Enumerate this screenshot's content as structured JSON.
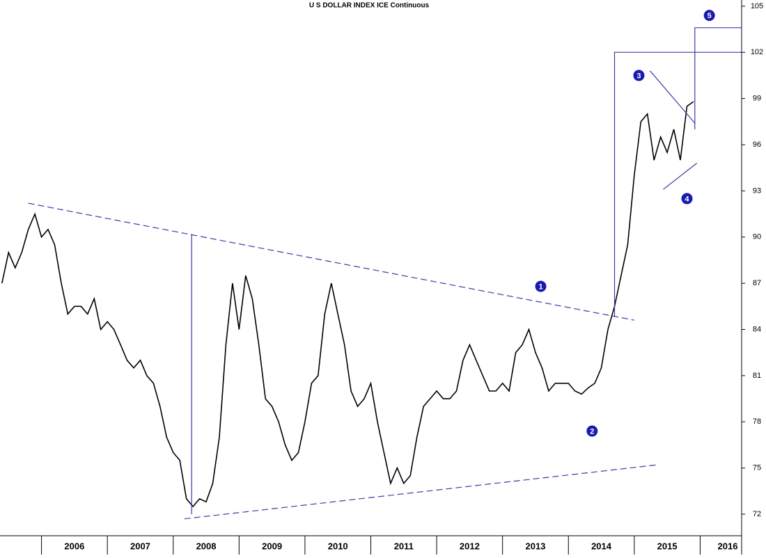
{
  "chart_data": {
    "type": "line",
    "title": "U S DOLLAR INDEX ICE Continuous",
    "x": [
      2005.4,
      2005.5,
      2005.6,
      2005.7,
      2005.8,
      2005.9,
      2006.0,
      2006.1,
      2006.2,
      2006.3,
      2006.4,
      2006.5,
      2006.6,
      2006.7,
      2006.8,
      2006.9,
      2007.0,
      2007.1,
      2007.2,
      2007.3,
      2007.4,
      2007.5,
      2007.6,
      2007.7,
      2007.8,
      2007.9,
      2008.0,
      2008.1,
      2008.2,
      2008.3,
      2008.4,
      2008.5,
      2008.6,
      2008.7,
      2008.8,
      2008.9,
      2009.0,
      2009.1,
      2009.2,
      2009.3,
      2009.4,
      2009.5,
      2009.6,
      2009.7,
      2009.8,
      2009.9,
      2010.0,
      2010.1,
      2010.2,
      2010.3,
      2010.4,
      2010.5,
      2010.6,
      2010.7,
      2010.8,
      2010.9,
      2011.0,
      2011.1,
      2011.2,
      2011.3,
      2011.4,
      2011.5,
      2011.6,
      2011.7,
      2011.8,
      2011.9,
      2012.0,
      2012.1,
      2012.2,
      2012.3,
      2012.4,
      2012.5,
      2012.6,
      2012.7,
      2012.8,
      2012.9,
      2013.0,
      2013.1,
      2013.2,
      2013.3,
      2013.4,
      2013.5,
      2013.6,
      2013.7,
      2013.8,
      2013.9,
      2014.0,
      2014.1,
      2014.2,
      2014.3,
      2014.4,
      2014.5,
      2014.6,
      2014.7,
      2014.8,
      2014.9,
      2015.0,
      2015.1,
      2015.2,
      2015.3,
      2015.4,
      2015.5,
      2015.6,
      2015.7,
      2015.8,
      2015.9
    ],
    "series": [
      {
        "color": "#000000",
        "values": [
          87,
          89,
          88,
          89,
          90.5,
          91.5,
          90,
          90.5,
          89.5,
          87,
          85,
          85.5,
          85.5,
          85,
          86,
          84,
          84.5,
          84,
          83,
          82,
          81.5,
          82,
          81,
          80.5,
          79,
          77,
          76,
          75.5,
          73,
          72.5,
          73,
          72.8,
          74,
          77,
          83,
          87,
          84,
          87.5,
          86,
          83,
          79.5,
          79,
          78,
          76.5,
          75.5,
          76,
          78,
          80.5,
          81,
          85,
          87,
          85,
          83,
          80,
          79,
          79.5,
          80.5,
          78,
          76,
          74,
          75,
          74,
          74.5,
          77,
          79,
          79.5,
          80,
          79.5,
          79.5,
          80,
          82,
          83,
          82,
          81,
          80,
          80,
          80.5,
          80,
          82.5,
          83,
          84,
          82.5,
          81.5,
          80,
          80.5,
          80.5,
          80.5,
          80,
          79.8,
          80.2,
          80.5,
          81.5,
          84,
          85.5,
          87.5,
          89.5,
          94,
          97.5,
          98,
          95,
          96.5,
          95.5,
          97,
          95,
          98.5,
          98.8
        ]
      }
    ],
    "xlim": [
      2005.37,
      2016.63
    ],
    "ylim": [
      70.6,
      105.4
    ],
    "xticks": [
      2006,
      2007,
      2008,
      2009,
      2010,
      2011,
      2012,
      2013,
      2014,
      2015,
      2016
    ],
    "yticks": [
      72,
      75,
      78,
      81,
      84,
      87,
      90,
      93,
      96,
      99,
      102,
      105
    ],
    "line_color": "#3a3aa8",
    "lines": [
      {
        "dashed": true,
        "points": [
          [
            2005.8,
            92.2
          ],
          [
            2015.0,
            84.6
          ]
        ]
      },
      {
        "dashed": true,
        "points": [
          [
            2008.17,
            71.7
          ],
          [
            2015.34,
            75.2
          ]
        ]
      },
      {
        "dashed": false,
        "points": [
          [
            2008.28,
            72
          ],
          [
            2008.28,
            90.2
          ]
        ]
      },
      {
        "dashed": false,
        "points": [
          [
            2014.7,
            84.8
          ],
          [
            2014.7,
            102
          ],
          [
            2016.63,
            102
          ]
        ]
      },
      {
        "dashed": false,
        "points": [
          [
            2015.92,
            97
          ],
          [
            2015.92,
            103.6
          ],
          [
            2016.63,
            103.6
          ]
        ]
      },
      {
        "dashed": false,
        "points": [
          [
            2015.24,
            100.8
          ],
          [
            2015.92,
            97.4
          ]
        ]
      },
      {
        "dashed": false,
        "points": [
          [
            2015.44,
            93.1
          ],
          [
            2015.95,
            94.8
          ]
        ]
      }
    ],
    "annotations": [
      {
        "label": "1",
        "x": 2013.58,
        "y": 86.8
      },
      {
        "label": "2",
        "x": 2014.36,
        "y": 77.4
      },
      {
        "label": "3",
        "x": 2015.07,
        "y": 100.5
      },
      {
        "label": "4",
        "x": 2015.8,
        "y": 92.5
      },
      {
        "label": "5",
        "x": 2016.14,
        "y": 104.4
      }
    ]
  }
}
